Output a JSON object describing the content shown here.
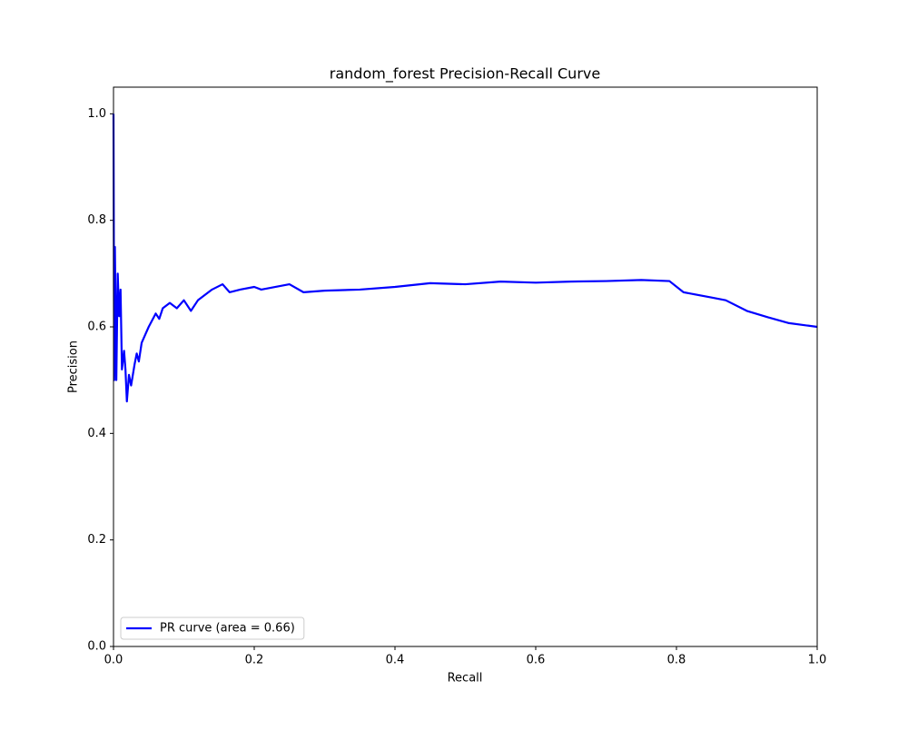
{
  "chart_data": {
    "type": "line",
    "title": "random_forest Precision-Recall Curve",
    "x_label": "Recall",
    "y_label": "Precision",
    "x": [
      0,
      0.001,
      0.002,
      0.004,
      0.006,
      0.008,
      0.01,
      0.012,
      0.015,
      0.017,
      0.019,
      0.022,
      0.025,
      0.03,
      0.033,
      0.036,
      0.04,
      0.05,
      0.06,
      0.065,
      0.07,
      0.08,
      0.09,
      0.1,
      0.11,
      0.12,
      0.14,
      0.155,
      0.165,
      0.18,
      0.2,
      0.21,
      0.25,
      0.27,
      0.3,
      0.35,
      0.4,
      0.45,
      0.5,
      0.55,
      0.6,
      0.65,
      0.7,
      0.75,
      0.79,
      0.81,
      0.85,
      0.87,
      0.9,
      0.93,
      0.96,
      1.0
    ],
    "series": [
      {
        "name": "PR curve (area = 0.66)",
        "color": "#0000ff",
        "values": [
          1.0,
          0.5,
          0.75,
          0.5,
          0.7,
          0.62,
          0.67,
          0.52,
          0.555,
          0.52,
          0.46,
          0.51,
          0.49,
          0.53,
          0.55,
          0.535,
          0.57,
          0.6,
          0.625,
          0.615,
          0.635,
          0.645,
          0.635,
          0.65,
          0.63,
          0.65,
          0.67,
          0.68,
          0.665,
          0.67,
          0.675,
          0.67,
          0.68,
          0.665,
          0.668,
          0.67,
          0.675,
          0.682,
          0.68,
          0.685,
          0.683,
          0.685,
          0.686,
          0.688,
          0.686,
          0.665,
          0.655,
          0.65,
          0.63,
          0.618,
          0.607,
          0.6
        ]
      }
    ],
    "xlim": [
      0,
      1
    ],
    "ylim": [
      0,
      1.05
    ],
    "xticks": [
      {
        "value": 0,
        "label": "0.0"
      },
      0.2,
      0.4,
      0.6,
      0.8,
      {
        "value": 1,
        "label": "1.0"
      }
    ],
    "yticks": [
      {
        "value": 0,
        "label": "0.0"
      },
      0.2,
      0.4,
      0.6,
      0.8,
      {
        "value": 1,
        "label": "1.0"
      }
    ],
    "legend": "lower left"
  }
}
